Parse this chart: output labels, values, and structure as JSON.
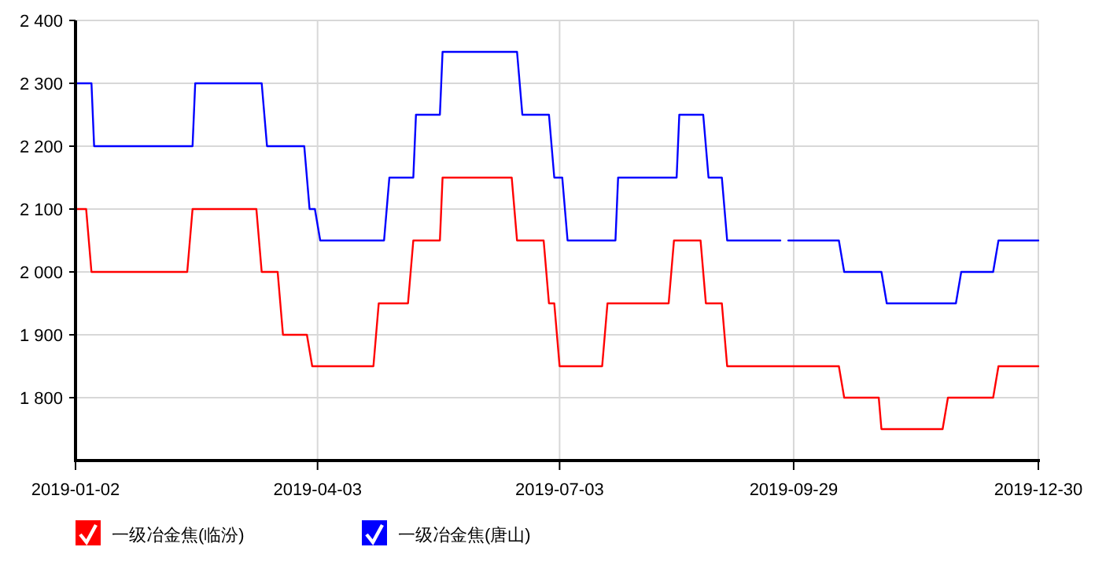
{
  "chart_data": {
    "type": "line",
    "xlim": [
      "2019-01-02",
      "2019-12-30"
    ],
    "xticks": [
      "2019-01-02",
      "2019-04-03",
      "2019-07-03",
      "2019-09-29",
      "2019-12-30"
    ],
    "ylim": [
      1700,
      2400
    ],
    "yticks": [
      {
        "value": 1800,
        "label": "1 800"
      },
      {
        "value": 1900,
        "label": "1 900"
      },
      {
        "value": 2000,
        "label": "2 000"
      },
      {
        "value": 2100,
        "label": "2 100"
      },
      {
        "value": 2200,
        "label": "2 200"
      },
      {
        "value": 2300,
        "label": "2 300"
      },
      {
        "value": 2400,
        "label": "2 400"
      }
    ],
    "grid": true,
    "legend": "bottom",
    "series": [
      {
        "name": "一级冶金焦(临汾)",
        "color": "#ff0000",
        "x": [
          "2019-01-02",
          "2019-01-06",
          "2019-01-08",
          "2019-02-13",
          "2019-02-15",
          "2019-03-11",
          "2019-03-13",
          "2019-03-19",
          "2019-03-21",
          "2019-03-30",
          "2019-04-01",
          "2019-04-24",
          "2019-04-26",
          "2019-05-07",
          "2019-05-09",
          "2019-05-19",
          "2019-05-20",
          "2019-06-15",
          "2019-06-17",
          "2019-06-27",
          "2019-06-29",
          "2019-07-01",
          "2019-07-03",
          "2019-07-19",
          "2019-07-21",
          "2019-08-13",
          "2019-08-15",
          "2019-08-25",
          "2019-08-27",
          "2019-09-02",
          "2019-09-04",
          "2019-10-16",
          "2019-10-18",
          "2019-10-31",
          "2019-11-01",
          "2019-11-24",
          "2019-11-26",
          "2019-12-13",
          "2019-12-15",
          "2019-12-30"
        ],
        "values": [
          2100,
          2100,
          2000,
          2000,
          2100,
          2100,
          2000,
          2000,
          1900,
          1900,
          1850,
          1850,
          1950,
          1950,
          2050,
          2050,
          2150,
          2150,
          2050,
          2050,
          1950,
          1950,
          1850,
          1850,
          1950,
          1950,
          2050,
          2050,
          1950,
          1950,
          1850,
          1850,
          1800,
          1800,
          1750,
          1750,
          1800,
          1800,
          1850,
          1850
        ]
      },
      {
        "name": "一级冶金焦(唐山)",
        "color": "#0000ff",
        "x": [
          "2019-01-02",
          "2019-01-08",
          "2019-01-09",
          "2019-02-15",
          "2019-02-16",
          "2019-03-13",
          "2019-03-15",
          "2019-03-29",
          "2019-03-31",
          "2019-04-02",
          "2019-04-04",
          "2019-04-28",
          "2019-04-30",
          "2019-05-09",
          "2019-05-10",
          "2019-05-19",
          "2019-05-20",
          "2019-06-17",
          "2019-06-19",
          "2019-06-29",
          "2019-07-01",
          "2019-07-04",
          "2019-07-06",
          "2019-07-24",
          "2019-07-25",
          "2019-08-16",
          "2019-08-17",
          "2019-08-26",
          "2019-08-28",
          "2019-09-02",
          "2019-09-04",
          "2019-09-24",
          "2019-09-25",
          "2019-09-27",
          "2019-10-16",
          "2019-10-18",
          "2019-11-01",
          "2019-11-03",
          "2019-11-29",
          "2019-12-01",
          "2019-12-13",
          "2019-12-15",
          "2019-12-30"
        ],
        "values": [
          2300,
          2300,
          2200,
          2200,
          2300,
          2300,
          2200,
          2200,
          2100,
          2100,
          2050,
          2050,
          2150,
          2150,
          2250,
          2250,
          2350,
          2350,
          2250,
          2250,
          2150,
          2150,
          2050,
          2050,
          2150,
          2150,
          2250,
          2250,
          2150,
          2150,
          2050,
          2050,
          null,
          2050,
          2050,
          2000,
          2000,
          1950,
          1950,
          2000,
          2000,
          2050,
          2050
        ]
      }
    ]
  }
}
